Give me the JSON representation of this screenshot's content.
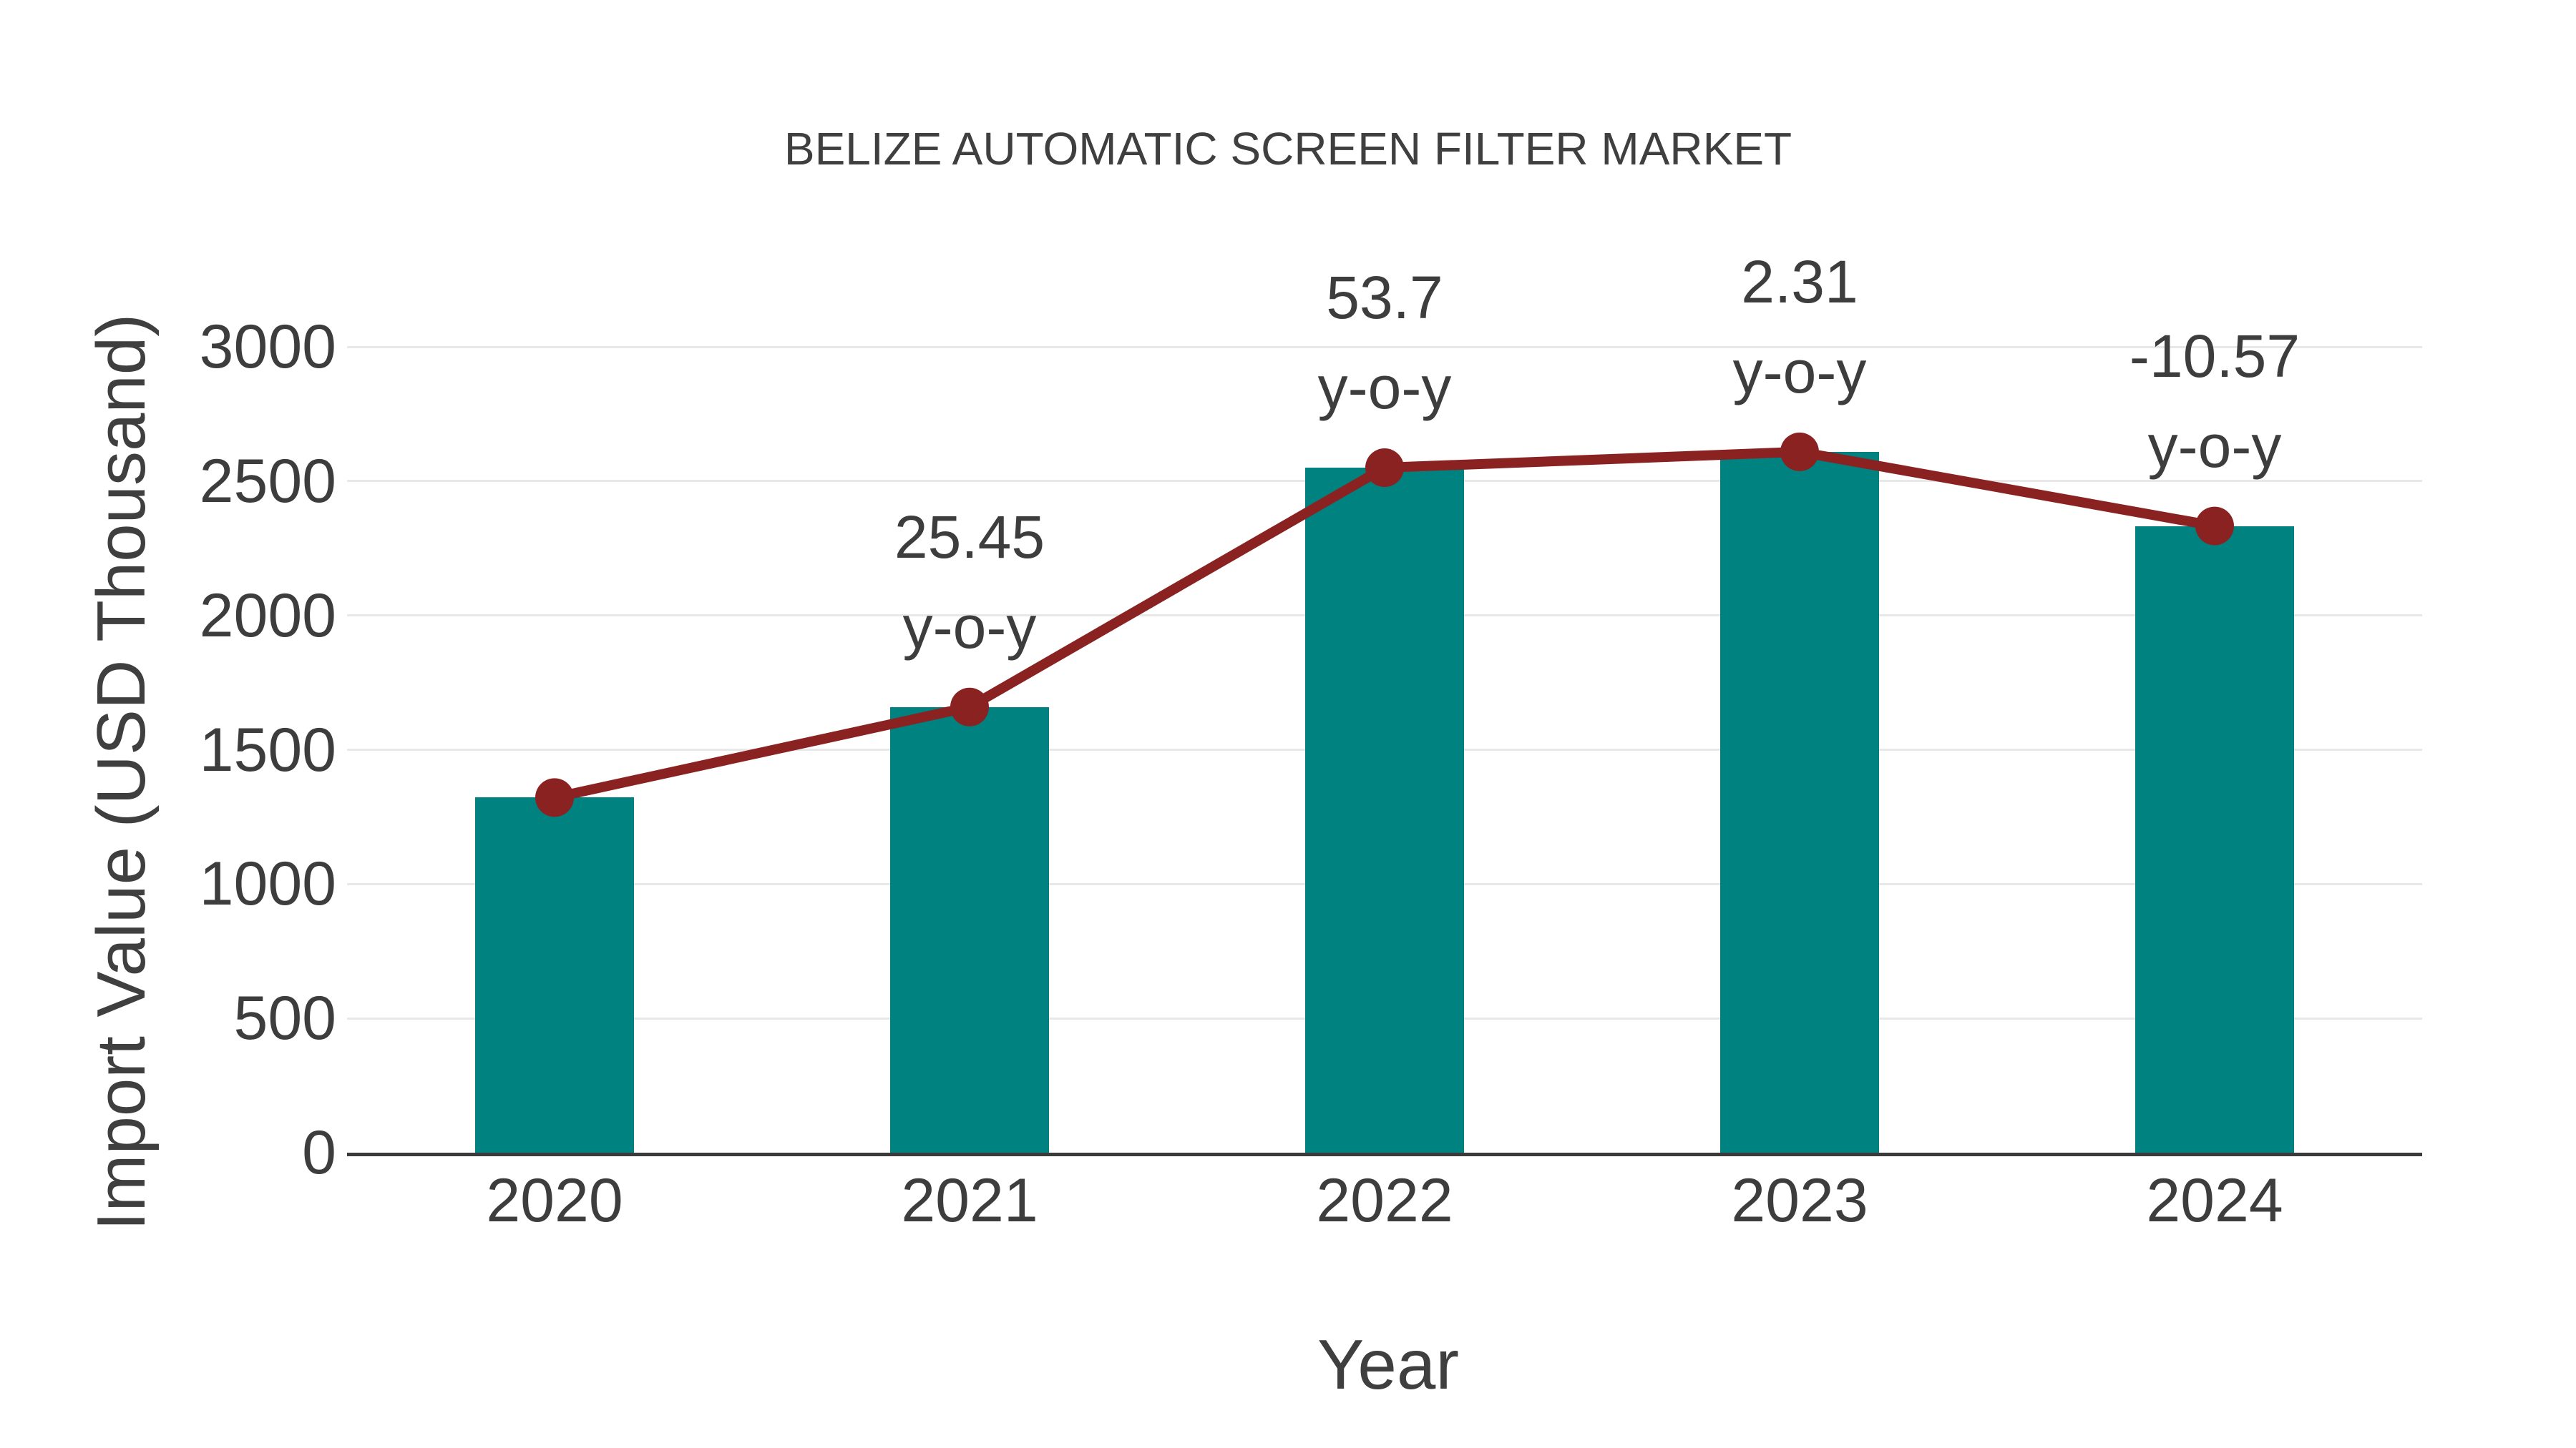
{
  "chart": {
    "title": "BELIZE AUTOMATIC SCREEN FILTER MARKET",
    "x_axis_title": "Year",
    "y_axis_title": "Import Value (USD Thousand)"
  },
  "chart_data": {
    "type": "bar",
    "title": "BELIZE AUTOMATIC SCREEN FILTER MARKET",
    "xlabel": "Year",
    "ylabel": "Import Value (USD Thousand)",
    "categories": [
      "2020",
      "2021",
      "2022",
      "2023",
      "2024"
    ],
    "series": [
      {
        "name": "Import Value (USD Thousand)",
        "type": "bar",
        "values": [
          1322,
          1659,
          2550,
          2609,
          2333
        ],
        "color": "#008280"
      },
      {
        "name": "Import Value trend line",
        "type": "line",
        "values": [
          1322,
          1659,
          2550,
          2609,
          2333
        ],
        "color": "#8B2222"
      }
    ],
    "yoy_percent": [
      null,
      25.45,
      53.7,
      2.31,
      -10.57
    ],
    "annotations": [
      {
        "index": 1,
        "line1": "25.45",
        "line2": "y-o-y"
      },
      {
        "index": 2,
        "line1": "53.7",
        "line2": "y-o-y"
      },
      {
        "index": 3,
        "line1": "2.31",
        "line2": "y-o-y"
      },
      {
        "index": 4,
        "line1": "-10.57",
        "line2": "y-o-y"
      }
    ],
    "yticks": [
      0,
      500,
      1000,
      1500,
      2000,
      2500,
      3000
    ],
    "ylim": [
      0,
      3200
    ],
    "grid": true,
    "legend": false,
    "colors": {
      "bar": "#008280",
      "line": "#8B2222",
      "marker": "#8B2222",
      "grid": "#E8E8E8",
      "axis": "#3a3a3a",
      "text": "#3d3d3d"
    }
  }
}
